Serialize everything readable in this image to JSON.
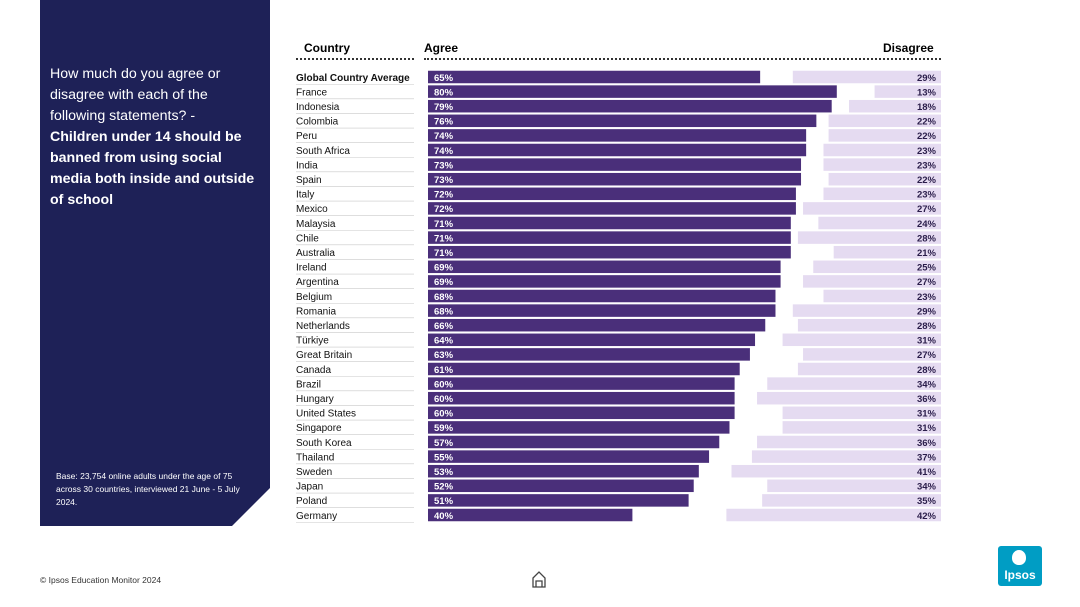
{
  "panel": {
    "question_plain": "How much do you agree or disagree with each of the following statements? -",
    "question_bold": "Children under 14 should be banned from using social media both inside and outside of school",
    "base_note": "Base: 23,754 online adults under the age of 75 across 30 countries, interviewed 21 June - 5 July 2024."
  },
  "footer": {
    "copyright": "© Ipsos Education Monitor 2024",
    "logo_text": "Ipsos"
  },
  "icons": {
    "home": "home-icon",
    "logo": "ipsos-logo"
  },
  "colors": {
    "panel": "#1e2157",
    "agree": "#4a2f7a",
    "disagree": "#e5dbf1",
    "logo": "#009dc4"
  },
  "chart_data": {
    "type": "bar",
    "headers": {
      "country": "Country",
      "agree": "Agree",
      "disagree": "Disagree"
    },
    "categories": [
      "Global Country Average",
      "France",
      "Indonesia",
      "Colombia",
      "Peru",
      "South Africa",
      "India",
      "Spain",
      "Italy",
      "Mexico",
      "Malaysia",
      "Chile",
      "Australia",
      "Ireland",
      "Argentina",
      "Belgium",
      "Romania",
      "Netherlands",
      "Türkiye",
      "Great Britain",
      "Canada",
      "Brazil",
      "Hungary",
      "United States",
      "Singapore",
      "South Korea",
      "Thailand",
      "Sweden",
      "Japan",
      "Poland",
      "Germany"
    ],
    "series": [
      {
        "name": "Agree",
        "values": [
          65,
          80,
          79,
          76,
          74,
          74,
          73,
          73,
          72,
          72,
          71,
          71,
          71,
          69,
          69,
          68,
          68,
          66,
          64,
          63,
          61,
          60,
          60,
          60,
          59,
          57,
          55,
          53,
          52,
          51,
          40
        ]
      },
      {
        "name": "Disagree",
        "values": [
          29,
          13,
          18,
          22,
          22,
          23,
          23,
          22,
          23,
          27,
          24,
          28,
          21,
          25,
          27,
          23,
          29,
          28,
          31,
          27,
          28,
          34,
          36,
          31,
          31,
          36,
          37,
          41,
          34,
          35,
          42
        ]
      }
    ],
    "value_labels": {
      "agree": [
        "65%",
        "80%",
        "79%",
        "76%",
        "74%",
        "74%",
        "73%",
        "73%",
        "72%",
        "72%",
        "71%",
        "71%",
        "71%",
        "69%",
        "69%",
        "68%",
        "68%",
        "66%",
        "64%",
        "63%",
        "61%",
        "60%",
        "60%",
        "60%",
        "59%",
        "57%",
        "55%",
        "53%",
        "52%",
        "51%",
        "40%"
      ],
      "disagree": [
        "29%",
        "13%",
        "18%",
        "22%",
        "22%",
        "23%",
        "23%",
        "22%",
        "23%",
        "27%",
        "24%",
        "28%",
        "21%",
        "25%",
        "27%",
        "23%",
        "29%",
        "28%",
        "31%",
        "27%",
        "28%",
        "34%",
        "36%",
        "31%",
        "31%",
        "36%",
        "37%",
        "41%",
        "34%",
        "35%",
        "42%"
      ]
    },
    "highlight_first_row": true,
    "xlim": [
      0,
      100
    ]
  }
}
